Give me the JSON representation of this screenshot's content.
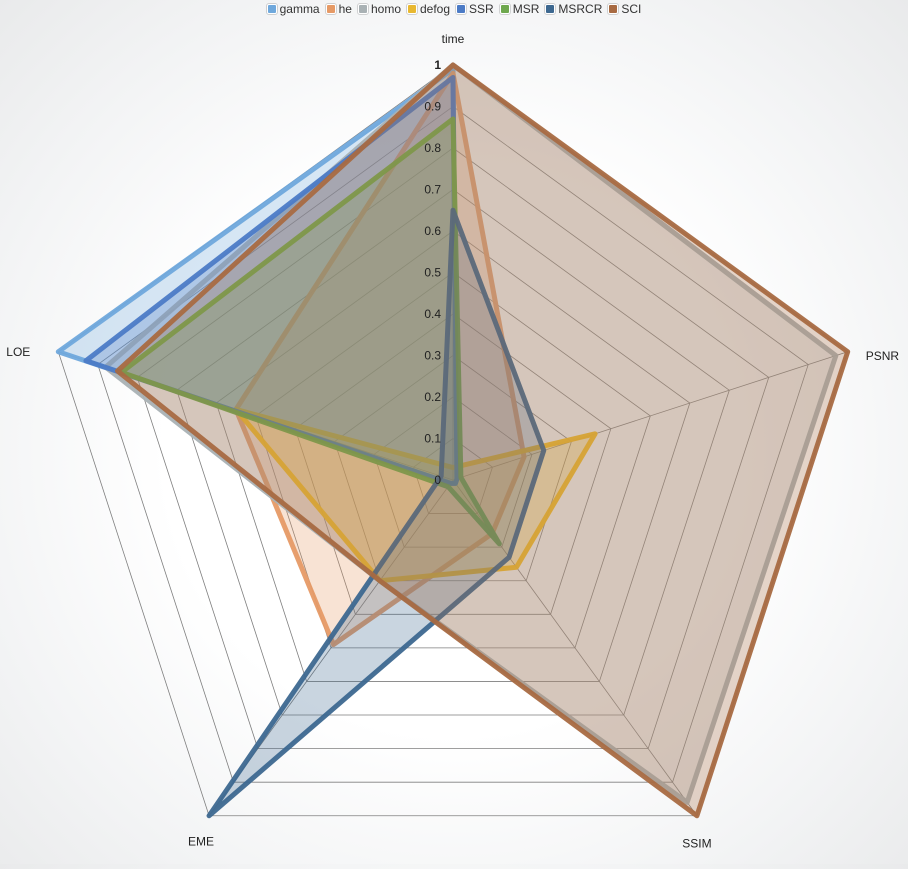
{
  "chart_data": {
    "type": "radar",
    "axes": [
      "time",
      "PSNR",
      "SSIM",
      "EME",
      "LOE"
    ],
    "rlim": [
      0,
      1
    ],
    "ticks": [
      "0",
      "0.1",
      "0.2",
      "0.3",
      "0.4",
      "0.5",
      "0.6",
      "0.7",
      "0.8",
      "0.9",
      "1"
    ],
    "grid": true,
    "legend_position": "top",
    "series": [
      {
        "name": "gamma",
        "color": "#6fa8dc",
        "values": [
          0.99,
          0.01,
          0.01,
          0.01,
          1.0
        ]
      },
      {
        "name": "he",
        "color": "#e69a66",
        "values": [
          0.98,
          0.18,
          0.16,
          0.49,
          0.55
        ]
      },
      {
        "name": "homo",
        "color": "#a9b1b4",
        "values": [
          1.0,
          0.97,
          0.96,
          0.3,
          0.88
        ]
      },
      {
        "name": "defog",
        "color": "#e8b830",
        "values": [
          0.03,
          0.36,
          0.26,
          0.3,
          0.55
        ]
      },
      {
        "name": "SSR",
        "color": "#4c7bc6",
        "values": [
          0.97,
          0.01,
          0.01,
          0.01,
          0.93
        ]
      },
      {
        "name": "MSR",
        "color": "#6fa84e",
        "values": [
          0.87,
          0.02,
          0.19,
          0.02,
          0.84
        ]
      },
      {
        "name": "MSRCR",
        "color": "#3d6890",
        "values": [
          0.65,
          0.23,
          0.23,
          1.0,
          0.03
        ]
      },
      {
        "name": "SCI",
        "color": "#a86a42",
        "values": [
          1.0,
          1.0,
          1.0,
          0.3,
          0.85
        ]
      }
    ]
  }
}
